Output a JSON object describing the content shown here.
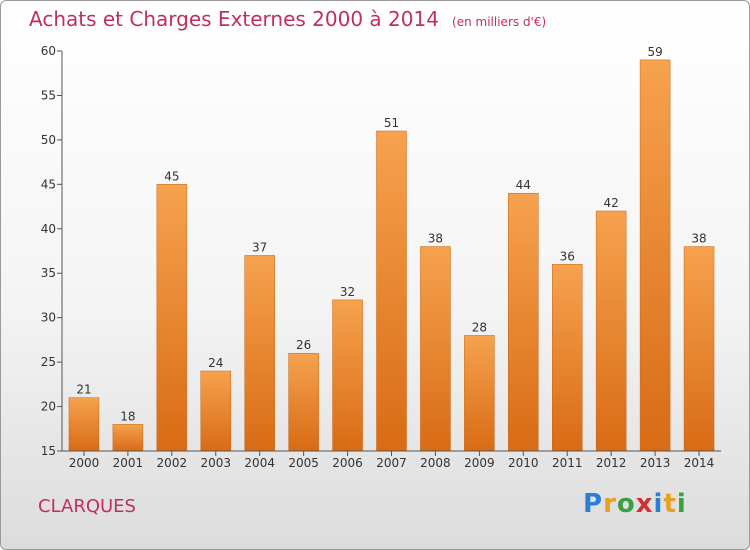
{
  "title": "Achats et Charges Externes 2000 à 2014",
  "unit_note": "(en milliers d'€)",
  "city": "CLARQUES",
  "logo": {
    "letters": [
      "P",
      "r",
      "o",
      "x",
      "i",
      "t",
      "i"
    ],
    "colors": [
      "#2a7fd4",
      "#e8a020",
      "#3aa040",
      "#d43030",
      "#2a7fd4",
      "#e8a020",
      "#3aa040"
    ]
  },
  "chart_data": {
    "type": "bar",
    "title": "Achats et Charges Externes 2000 à 2014",
    "subtitle": "(en milliers d'€)",
    "categories": [
      "2000",
      "2001",
      "2002",
      "2003",
      "2004",
      "2005",
      "2006",
      "2007",
      "2008",
      "2009",
      "2010",
      "2011",
      "2012",
      "2013",
      "2014"
    ],
    "values": [
      21,
      18,
      45,
      24,
      37,
      26,
      32,
      51,
      38,
      28,
      44,
      36,
      42,
      59,
      38
    ],
    "ylim": [
      15,
      60
    ],
    "yticks": [
      15,
      20,
      25,
      30,
      35,
      40,
      45,
      50,
      55,
      60
    ],
    "grid": false,
    "bar_color": "#f0923a"
  }
}
